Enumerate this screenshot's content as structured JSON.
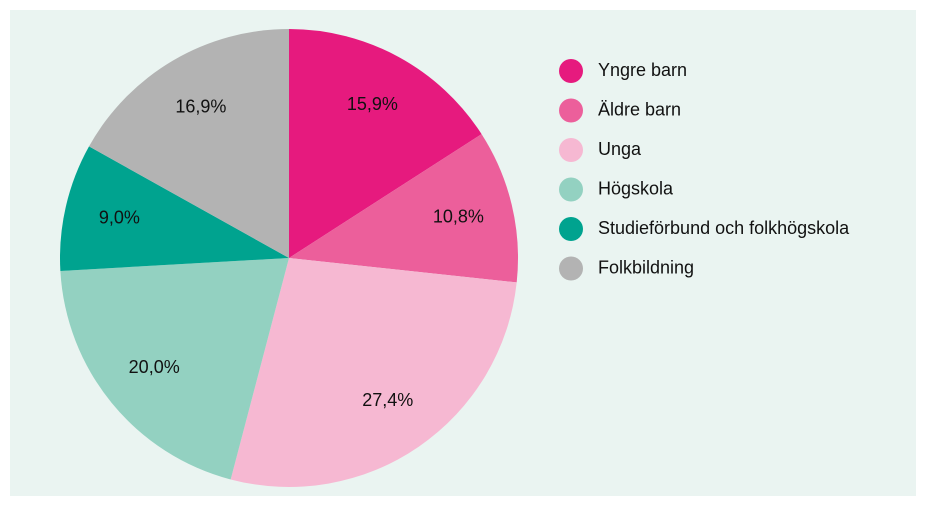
{
  "chart_data": {
    "type": "pie",
    "categories": [
      "Yngre barn",
      "Äldre barn",
      "Unga",
      "Högskola",
      "Studieförbund och folkhögskola",
      "Folkbildning"
    ],
    "values": [
      15.9,
      10.8,
      27.4,
      20.0,
      9.0,
      16.9
    ],
    "value_labels": [
      "15,9%",
      "10,8%",
      "27,4%",
      "20,0%",
      "9,0%",
      "16,9%"
    ],
    "colors": [
      "#e61a7e",
      "#ec5f9b",
      "#f6b8d2",
      "#93d1c1",
      "#00a38f",
      "#b3b3b3"
    ],
    "legend": "right"
  }
}
